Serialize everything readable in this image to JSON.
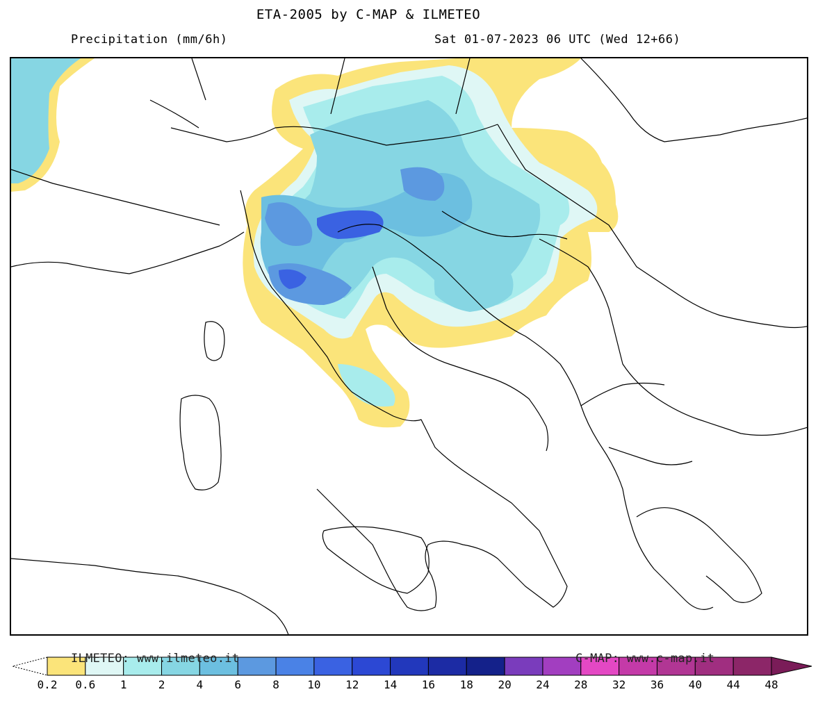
{
  "header": {
    "title": "ETA-2005 by C-MAP & ILMETEO",
    "product": "Precipitation (mm/6h)",
    "valid_time": "Sat 01-07-2023 06 UTC (Wed 12+66)"
  },
  "legend": {
    "credit_left": "ILMETEO: www.ilmeteo.it",
    "credit_right": "C-MAP: www.c-map.it",
    "ticks": [
      "0.2",
      "0.6",
      "1",
      "2",
      "4",
      "6",
      "8",
      "10",
      "12",
      "14",
      "16",
      "18",
      "20",
      "24",
      "28",
      "32",
      "36",
      "40",
      "44",
      "48"
    ],
    "colors": [
      "#fbe47a",
      "#dff7f5",
      "#a8ecec",
      "#86d6e3",
      "#6cbfe0",
      "#5c99e0",
      "#4a82e6",
      "#3a62e2",
      "#2c48d4",
      "#2238bc",
      "#1c2ba4",
      "#14218a",
      "#7a3cbc",
      "#a23ec0",
      "#e448c4",
      "#c43aa8",
      "#b13694",
      "#a02e80",
      "#8c2668",
      "#7a1c58"
    ]
  },
  "map": {
    "region": "Italy and the Balkans",
    "colors": {
      "light": "#fbe47a",
      "c1": "#a8ecec",
      "c2": "#86d6e3",
      "c3": "#6cbfe0",
      "c4": "#5c99e0",
      "c5": "#3a62e2"
    }
  }
}
